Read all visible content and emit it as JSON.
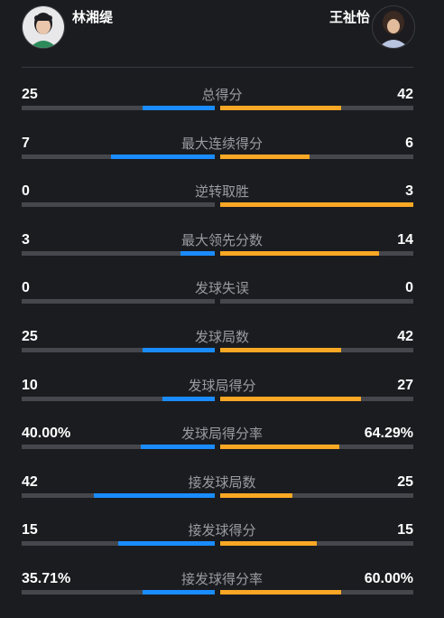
{
  "players": {
    "left": {
      "name": "林湘缇"
    },
    "right": {
      "name": "王祉怡"
    }
  },
  "colors": {
    "left_bar": "#1a8cff",
    "right_bar": "#f9a825",
    "track": "#46474c",
    "background": "#1b1c20"
  },
  "stats": [
    {
      "label": "总得分",
      "left": "25",
      "right": "42",
      "left_share": 0.373,
      "right_share": 0.627
    },
    {
      "label": "最大连续得分",
      "left": "7",
      "right": "6",
      "left_share": 0.538,
      "right_share": 0.462
    },
    {
      "label": "逆转取胜",
      "left": "0",
      "right": "3",
      "left_share": 0,
      "right_share": 1
    },
    {
      "label": "最大领先分数",
      "left": "3",
      "right": "14",
      "left_share": 0.176,
      "right_share": 0.824
    },
    {
      "label": "发球失误",
      "left": "0",
      "right": "0",
      "left_share": 0,
      "right_share": 0
    },
    {
      "label": "发球局数",
      "left": "25",
      "right": "42",
      "left_share": 0.373,
      "right_share": 0.627
    },
    {
      "label": "发球局得分",
      "left": "10",
      "right": "27",
      "left_share": 0.27,
      "right_share": 0.73
    },
    {
      "label": "发球局得分率",
      "left": "40.00%",
      "right": "64.29%",
      "left_share": 0.384,
      "right_share": 0.616
    },
    {
      "label": "接发球局数",
      "left": "42",
      "right": "25",
      "left_share": 0.627,
      "right_share": 0.373
    },
    {
      "label": "接发球得分",
      "left": "15",
      "right": "15",
      "left_share": 0.5,
      "right_share": 0.5
    },
    {
      "label": "接发球得分率",
      "left": "35.71%",
      "right": "60.00%",
      "left_share": 0.373,
      "right_share": 0.627
    }
  ]
}
